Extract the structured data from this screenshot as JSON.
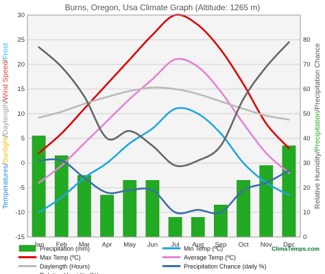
{
  "chart_data": {
    "type": "bar",
    "title": "Burns, Oregon, Usa Climate Graph (Altitude: 1265 m)",
    "categories": [
      "Jan",
      "Feb",
      "Mar",
      "Apr",
      "May",
      "Jun",
      "Jul",
      "Aug",
      "Sep",
      "Oct",
      "Nov",
      "Dec"
    ],
    "left_axis": {
      "ylim": [
        -15,
        30
      ],
      "ticks": [
        -15,
        -10,
        -5,
        0,
        5,
        10,
        15,
        20,
        25,
        30
      ],
      "label_parts": [
        {
          "text": "Temperatures",
          "color": "#1e88e5"
        },
        {
          "text": "/",
          "color": "#444444"
        },
        {
          "text": "Sunlight",
          "color": "#f0c000"
        },
        {
          "text": "/",
          "color": "#444444"
        },
        {
          "text": "Daylength",
          "color": "#9e9e9e"
        },
        {
          "text": "/",
          "color": "#444444"
        },
        {
          "text": "Wind Speed",
          "color": "#e53935"
        },
        {
          "text": "/",
          "color": "#444444"
        },
        {
          "text": "Frost",
          "color": "#29b6f6"
        }
      ]
    },
    "right_axis": {
      "ylim": [
        0,
        90
      ],
      "ticks": [
        0,
        10,
        20,
        30,
        40,
        50,
        60,
        70,
        80
      ],
      "label_parts": [
        {
          "text": "Relative Humidity",
          "color": "#555555"
        },
        {
          "text": "/",
          "color": "#444444"
        },
        {
          "text": "Precipitation",
          "color": "#22aa22"
        },
        {
          "text": "/",
          "color": "#444444"
        },
        {
          "text": "Precipitation Chance",
          "color": "#555555"
        }
      ]
    },
    "series": [
      {
        "name": "Precipitation (mm)",
        "kind": "bar",
        "axis": "right",
        "color": "#22aa22",
        "values": [
          41,
          33,
          25,
          17,
          23,
          23,
          8,
          8,
          13,
          23,
          29,
          37
        ]
      },
      {
        "name": "Min Temp (ºC)",
        "kind": "line",
        "axis": "left",
        "color": "#1ea7e1",
        "values": [
          -10,
          -7,
          -3,
          0,
          4,
          7,
          11,
          10,
          6,
          0,
          -4,
          -6.5
        ]
      },
      {
        "name": "Max Temp (ºC)",
        "kind": "line",
        "axis": "left",
        "color": "#dd0000",
        "values": [
          2,
          6,
          11,
          16,
          21,
          26,
          30,
          28,
          23,
          16,
          8,
          3
        ]
      },
      {
        "name": "Average Temp (ºC)",
        "kind": "line",
        "axis": "left",
        "color": "#e383d3",
        "values": [
          -4,
          -0.5,
          4,
          8.5,
          13,
          17,
          21,
          19.5,
          14.5,
          8,
          2,
          -2
        ]
      },
      {
        "name": "Daylength (Hours)",
        "kind": "line",
        "axis": "left",
        "color": "#bbbbbb",
        "values": [
          9.2,
          10.4,
          12,
          13.4,
          14.6,
          15.3,
          15,
          14,
          12.5,
          11,
          9.6,
          8.8
        ]
      },
      {
        "name": "Precipitation Chance (daily %)",
        "kind": "line",
        "axis": "right",
        "color": "#3a6fa6",
        "values": [
          31,
          31,
          24,
          18,
          19,
          19,
          10,
          11,
          10,
          19,
          22,
          27
        ]
      },
      {
        "name": "Relative Humidity (%)",
        "kind": "line",
        "axis": "right",
        "color": "#666666",
        "values": [
          77,
          69,
          57,
          40,
          43,
          37,
          29,
          31,
          37,
          56,
          69,
          79
        ]
      }
    ],
    "legend": {
      "position": "bottom",
      "brand": "ClimaTemps.com"
    },
    "grid": true
  }
}
